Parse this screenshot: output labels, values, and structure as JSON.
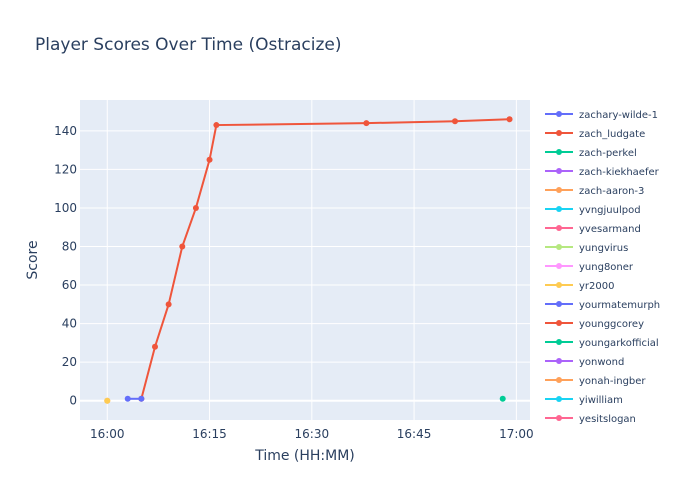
{
  "chart_data": {
    "type": "line",
    "title": "Player Scores Over Time (Ostracize)",
    "xlabel": "Time (HH:MM)",
    "ylabel": "Score",
    "x_range_minutes": [
      -4,
      62
    ],
    "ylim": [
      -10,
      156
    ],
    "x_ticks": [
      {
        "label": "16:00",
        "minutes": 0
      },
      {
        "label": "16:15",
        "minutes": 15
      },
      {
        "label": "16:30",
        "minutes": 30
      },
      {
        "label": "16:45",
        "minutes": 45
      },
      {
        "label": "17:00",
        "minutes": 60
      }
    ],
    "y_ticks": [
      0,
      20,
      40,
      60,
      80,
      100,
      120,
      140
    ],
    "grid": true,
    "legend_position": "right",
    "series": [
      {
        "name": "zachary-wilde-1",
        "color": "#636efa",
        "points": []
      },
      {
        "name": "zach_ludgate",
        "color": "#ef553b",
        "points": [
          [
            "16:05",
            1
          ],
          [
            "16:07",
            28
          ],
          [
            "16:09",
            50
          ],
          [
            "16:11",
            80
          ],
          [
            "16:13",
            100
          ],
          [
            "16:15",
            125
          ],
          [
            "16:16",
            143
          ],
          [
            "16:38",
            144
          ],
          [
            "16:51",
            145
          ],
          [
            "16:59",
            146
          ]
        ]
      },
      {
        "name": "zach-perkel",
        "color": "#00cc96",
        "points": [
          [
            "16:58",
            1
          ]
        ]
      },
      {
        "name": "zach-kiekhaefer",
        "color": "#ab63fa",
        "points": []
      },
      {
        "name": "zach-aaron-3",
        "color": "#ffa15a",
        "points": [
          [
            "16:00",
            0
          ]
        ]
      },
      {
        "name": "yvngjuulpod",
        "color": "#19d3f3",
        "points": []
      },
      {
        "name": "yvesarmand",
        "color": "#ff6692",
        "points": []
      },
      {
        "name": "yungvirus",
        "color": "#b6e880",
        "points": []
      },
      {
        "name": "yung8oner",
        "color": "#ff97ff",
        "points": []
      },
      {
        "name": "yr2000",
        "color": "#fecb52",
        "points": [
          [
            "16:00",
            0
          ]
        ]
      },
      {
        "name": "yourmatemurph",
        "color": "#636efa",
        "points": [
          [
            "16:03",
            1
          ],
          [
            "16:05",
            1
          ]
        ]
      },
      {
        "name": "younggcorey",
        "color": "#ef553b",
        "points": []
      },
      {
        "name": "youngarkofficial",
        "color": "#00cc96",
        "points": []
      },
      {
        "name": "yonwond",
        "color": "#ab63fa",
        "points": []
      },
      {
        "name": "yonah-ingber",
        "color": "#ffa15a",
        "points": []
      },
      {
        "name": "yiwilliam",
        "color": "#19d3f3",
        "points": []
      },
      {
        "name": "yesitslogan",
        "color": "#ff6692",
        "points": []
      }
    ]
  }
}
